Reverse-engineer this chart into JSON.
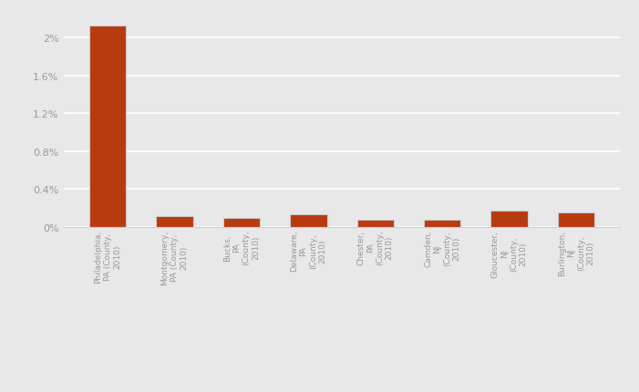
{
  "categories": [
    "Philadelphia,\nPA (County,\n2010)",
    "Montgomery,\nPA (County,\n2010)",
    "Bucks,\nPA\n(County,\n2010)",
    "Delaware,\nPA\n(County,\n2010)",
    "Chester,\nPA\n(County,\n2010)",
    "Camden,\nNJ\n(County,\n2010)",
    "Gloucester,\nNJ\n(County,\n2010)",
    "Burlington,\nNJ\n(County,\n2010)"
  ],
  "values": [
    0.0213,
    0.00115,
    0.00095,
    0.0013,
    0.00075,
    0.0008,
    0.0017,
    0.0015
  ],
  "bar_color": "#b83b10",
  "bar_edge_color": "#cccccc",
  "background_color": "#e8e8e8",
  "plot_area_color": "#e8e8e8",
  "ylim": [
    0,
    0.0228
  ],
  "yticks": [
    0,
    0.004,
    0.008,
    0.012,
    0.016,
    0.02
  ],
  "ytick_labels": [
    "0%",
    "0.4%",
    "0.8%",
    "1.2%",
    "1.6%",
    "2%"
  ],
  "grid_color": "#ffffff",
  "label_fontsize": 6.5,
  "tick_fontsize": 8,
  "label_color": "#999999",
  "tick_color": "#999999"
}
